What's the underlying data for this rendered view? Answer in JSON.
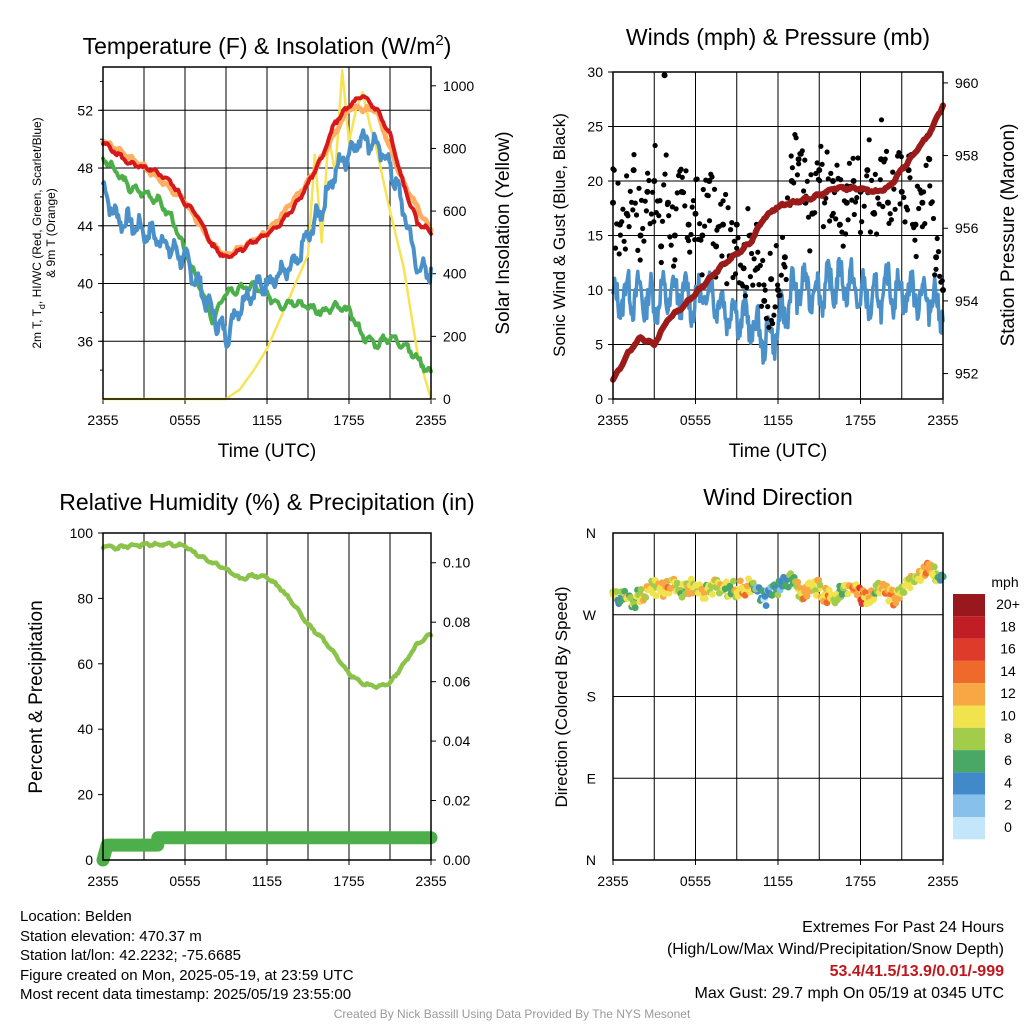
{
  "chart_data": [
    {
      "type": "line",
      "title": "Temperature (F) & Insolation (W/m2)",
      "title_text": "Temperature (F) & Insolation (W/m",
      "title_sup": "2",
      "title_end": ")",
      "xlabel": "Time (UTC)",
      "ylabel_lines": [
        "2m T, T",
        "d",
        ", HI/WC (Red, Green, Scarlet/Blue)",
        "& 9m T (Orange)"
      ],
      "y2label": "Solar Insolation (Yellow)",
      "xticks": [
        "2355",
        "0555",
        "1155",
        "1755",
        "2355"
      ],
      "ylim": [
        32,
        55
      ],
      "yticks": [
        36,
        40,
        44,
        48,
        52
      ],
      "y2lim": [
        0,
        1060
      ],
      "y2ticks": [
        0,
        200,
        400,
        600,
        800,
        1000
      ],
      "grid": true,
      "series": [
        {
          "name": "2m T",
          "color": "#d7191c",
          "axis": "left",
          "hours": [
            0,
            1,
            2,
            3,
            4,
            5,
            6,
            7,
            8,
            9,
            10,
            11,
            12,
            13,
            14,
            15,
            16,
            17,
            18,
            19,
            20,
            21,
            22,
            23,
            24
          ],
          "values": [
            49.8,
            49.0,
            48.3,
            48.0,
            47.7,
            47.0,
            45.6,
            44.6,
            42.6,
            41.8,
            42.3,
            42.9,
            43.4,
            44.2,
            45.3,
            46.9,
            48.7,
            51.2,
            52.3,
            53.0,
            52.1,
            50.3,
            46.8,
            44.2,
            43.6
          ]
        },
        {
          "name": "9m T",
          "color": "#fdae61",
          "axis": "left",
          "hours": [
            0,
            3,
            6,
            8,
            9,
            12,
            15,
            18,
            20,
            22,
            24
          ],
          "values": [
            49.9,
            48.1,
            45.7,
            42.7,
            41.9,
            43.5,
            47.0,
            52.2,
            52.0,
            46.9,
            43.7
          ]
        },
        {
          "name": "Td",
          "color": "#4daf4a",
          "axis": "left",
          "hours": [
            0,
            1,
            2,
            3,
            4,
            5,
            6,
            7,
            8,
            9,
            10,
            11,
            12,
            13,
            14,
            15,
            16,
            17,
            18,
            19,
            20,
            21,
            22,
            23,
            24
          ],
          "values": [
            48.7,
            47.7,
            46.6,
            46.3,
            45.8,
            44.6,
            42.2,
            40.1,
            37.4,
            39.4,
            39.6,
            39.9,
            39.2,
            38.5,
            38.8,
            38.4,
            38.0,
            38.4,
            38.1,
            36.4,
            35.8,
            36.3,
            35.8,
            34.8,
            33.8
          ]
        },
        {
          "name": "HI/WC",
          "color": "#4a90c9",
          "axis": "left",
          "hours": [
            0,
            1,
            2,
            3,
            4,
            5,
            6,
            7,
            8,
            9,
            10,
            11,
            12,
            13,
            14,
            15,
            16,
            17,
            18,
            19,
            20,
            21,
            22,
            23,
            24
          ],
          "values": [
            46.6,
            44.5,
            44.2,
            43.6,
            43.2,
            42.4,
            41.7,
            39.9,
            38.0,
            36.3,
            38.5,
            39.6,
            40.1,
            40.6,
            41.2,
            43.3,
            45.2,
            47.8,
            49.1,
            50.2,
            49.6,
            48.2,
            45.1,
            41.1,
            40.7
          ]
        },
        {
          "name": "Solar Insolation",
          "color": "#f7e356",
          "axis": "right",
          "hours": [
            0,
            4,
            8,
            9,
            10,
            11,
            12,
            13,
            14,
            15,
            15.5,
            16,
            16.5,
            17,
            17.5,
            18,
            18.5,
            19,
            19.5,
            20,
            21,
            22,
            23,
            24
          ],
          "values": [
            0,
            0,
            0,
            0,
            30,
            90,
            160,
            260,
            360,
            460,
            780,
            500,
            840,
            720,
            1050,
            820,
            920,
            980,
            880,
            800,
            600,
            420,
            150,
            0
          ]
        }
      ]
    },
    {
      "type": "scatter",
      "title": "Winds (mph) & Pressure (mb)",
      "xlabel": "Time (UTC)",
      "ylabel": "Sonic Wind & Gust (Blue, Black)",
      "y2label": "Station Pressure (Maroon)",
      "xticks": [
        "2355",
        "0555",
        "1155",
        "1755",
        "2355"
      ],
      "ylim": [
        0,
        30
      ],
      "yticks": [
        0,
        5,
        10,
        15,
        20,
        25,
        30
      ],
      "y2lim": [
        951.3,
        960.3
      ],
      "y2ticks": [
        952,
        954,
        956,
        958,
        960
      ],
      "grid": true,
      "series": [
        {
          "name": "Sonic Wind",
          "color": "#4a90c9",
          "hours": [
            0,
            1,
            2,
            3,
            4,
            5,
            6,
            7,
            8,
            9,
            10,
            11,
            12,
            13,
            14,
            15,
            16,
            17,
            18,
            19,
            20,
            21,
            22,
            23,
            24
          ],
          "values": [
            8.6,
            9.8,
            9.4,
            9.0,
            9.6,
            9.7,
            8.8,
            10.1,
            8.4,
            7.8,
            7.0,
            5.5,
            6.4,
            9.8,
            10.3,
            9.8,
            10.6,
            10.8,
            9.5,
            9.0,
            10.2,
            9.8,
            9.6,
            9.3,
            8.4
          ]
        },
        {
          "name": "Gust",
          "color": "#000000",
          "hours": [
            0,
            0.5,
            1,
            1.5,
            2,
            2.5,
            3,
            3.5,
            3.75,
            4,
            4.5,
            5,
            5.5,
            6,
            6.5,
            7,
            7.5,
            8,
            8.5,
            9,
            9.5,
            10,
            10.5,
            11,
            11.5,
            12,
            12.5,
            13,
            13.5,
            14,
            14.5,
            15,
            15.5,
            16,
            16.5,
            17,
            17.5,
            18,
            18.5,
            19,
            19.5,
            20,
            20.5,
            21,
            21.5,
            22,
            22.5,
            23,
            23.5,
            24
          ],
          "values": [
            18,
            16,
            17,
            21,
            15,
            19,
            20,
            14,
            29.7,
            18,
            15,
            19,
            16,
            17,
            15,
            20,
            14,
            16,
            13,
            16,
            12,
            15,
            12,
            9,
            11,
            10,
            13,
            20,
            22,
            18,
            17,
            21,
            19,
            20,
            16,
            18,
            20,
            19,
            21,
            17,
            22,
            18,
            20,
            19,
            21,
            16,
            18,
            22,
            13,
            10
          ]
        },
        {
          "name": "Station Pressure",
          "color": "#9b1b1b",
          "axis": "right",
          "hours": [
            0,
            1,
            2,
            3,
            4,
            5,
            6,
            7,
            8,
            9,
            10,
            11,
            12,
            13,
            14,
            15,
            16,
            17,
            18,
            19,
            20,
            21,
            22,
            23,
            24
          ],
          "values": [
            951.8,
            952.5,
            953.0,
            952.8,
            953.5,
            953.8,
            954.2,
            954.6,
            955.0,
            955.3,
            955.6,
            956.3,
            956.6,
            956.7,
            956.8,
            956.9,
            957.1,
            957.1,
            957.1,
            957.0,
            957.1,
            957.6,
            958.1,
            958.6,
            959.4
          ]
        }
      ]
    },
    {
      "type": "line",
      "title": "Relative Humidity (%) & Precipitation (in)",
      "xlabel": "",
      "ylabel": "Percent & Precipitation",
      "xticks": [
        "2355",
        "0555",
        "1155",
        "1755",
        "2355"
      ],
      "ylim": [
        0,
        100
      ],
      "yticks": [
        0,
        20,
        40,
        60,
        80,
        100
      ],
      "y2lim": [
        0,
        0.11
      ],
      "y2ticks": [
        "0.00",
        "0.02",
        "0.04",
        "0.06",
        "0.08",
        "0.10"
      ],
      "grid": true,
      "series": [
        {
          "name": "Relative Humidity",
          "color": "#8bc34a",
          "hours": [
            0,
            1,
            2,
            3,
            4,
            5,
            6,
            7,
            8,
            9,
            10,
            11,
            12,
            13,
            14,
            15,
            16,
            17,
            18,
            19,
            20,
            21,
            22,
            23,
            24
          ],
          "values": [
            96,
            95.5,
            96,
            96.5,
            96.5,
            96.5,
            96,
            93,
            91,
            89,
            86,
            87,
            86.5,
            83,
            78,
            72,
            68,
            63,
            57,
            54,
            53,
            54,
            60,
            66,
            69
          ]
        },
        {
          "name": "Precipitation",
          "color": "#4daf4a",
          "axis": "right",
          "hours": [
            0,
            0.3,
            1,
            2,
            3,
            4,
            4.01,
            5,
            8,
            12,
            16,
            20,
            24
          ],
          "values": [
            0,
            0.005,
            0.005,
            0.005,
            0.005,
            0.005,
            0.0075,
            0.0075,
            0.0075,
            0.0075,
            0.0075,
            0.0075,
            0.0075
          ]
        }
      ]
    },
    {
      "type": "scatter",
      "title": "Wind Direction",
      "xlabel": "",
      "ylabel": "Direction (Colored By Speed)",
      "xticks": [
        "2355",
        "0555",
        "1155",
        "1755",
        "2355"
      ],
      "yticks": [
        "N",
        "W",
        "S",
        "E",
        "N"
      ],
      "ylim": [
        0,
        360
      ],
      "grid": true,
      "series": [
        {
          "name": "Wind Direction",
          "hours": [
            0,
            0.5,
            1,
            1.5,
            2,
            2.5,
            3,
            3.5,
            4,
            4.5,
            5,
            5.5,
            6,
            6.5,
            7,
            7.5,
            8,
            8.5,
            9,
            9.5,
            10,
            10.5,
            11,
            11.5,
            12,
            12.5,
            13,
            13.5,
            14,
            14.5,
            15,
            15.5,
            16,
            16.5,
            17,
            17.5,
            18,
            18.5,
            19,
            19.5,
            20,
            20.5,
            21,
            21.5,
            22,
            22.5,
            23,
            23.5,
            24
          ],
          "degrees": [
            295,
            288,
            290,
            285,
            292,
            298,
            300,
            296,
            299,
            301,
            297,
            300,
            302,
            296,
            298,
            300,
            297,
            299,
            298,
            300,
            301,
            296,
            288,
            292,
            300,
            305,
            310,
            298,
            293,
            300,
            299,
            290,
            288,
            296,
            302,
            297,
            290,
            285,
            292,
            300,
            293,
            288,
            298,
            305,
            312,
            318,
            320,
            315,
            312
          ],
          "speeds": [
            8,
            6,
            10,
            7,
            9,
            11,
            8,
            10,
            12,
            9,
            7,
            10,
            9,
            11,
            8,
            10,
            9,
            7,
            10,
            12,
            9,
            4,
            3,
            5,
            6,
            4,
            8,
            10,
            12,
            9,
            11,
            13,
            10,
            6,
            9,
            12,
            14,
            11,
            9,
            10,
            13,
            12,
            8,
            10,
            9,
            11,
            12,
            8,
            5
          ]
        }
      ],
      "colorbar": {
        "title": "mph",
        "labels": [
          "20+",
          "18",
          "16",
          "14",
          "12",
          "10",
          "8",
          "6",
          "4",
          "2",
          "0"
        ],
        "colors": [
          "#99181d",
          "#c01d24",
          "#de3b2a",
          "#ef6a2a",
          "#f9a645",
          "#f0e34e",
          "#a4cc4b",
          "#4aa866",
          "#4189c9",
          "#87c0eb",
          "#c4e6fb"
        ]
      }
    }
  ],
  "footer": {
    "location": "Location: Belden",
    "elevation": "Station elevation: 470.37 m",
    "latlon": "Station lat/lon: 42.2232; -75.6685",
    "created": "Figure created on Mon, 2025-05-19, at 23:59 UTC",
    "recent": "Most recent data timestamp: 2025/05/19 23:55:00",
    "extremes_title": "Extremes For Past 24 Hours",
    "extremes_sub": "(High/Low/Max Wind/Precipitation/Snow Depth)",
    "extremes_values": "53.4/41.5/13.9/0.01/-999",
    "max_gust": "Max Gust: 29.7 mph On 05/19 at 0345 UTC",
    "credit": "Created By Nick Bassill Using Data Provided By The NYS Mesonet"
  }
}
